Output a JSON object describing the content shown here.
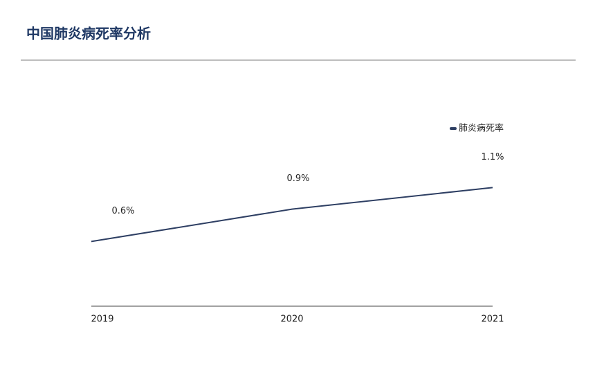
{
  "chart_data": {
    "type": "line",
    "title": "中国肺炎病死率分析",
    "categories": [
      "2019",
      "2020",
      "2021"
    ],
    "series": [
      {
        "name": "肺炎病死率",
        "color": "#2e3f63",
        "values": [
          0.6,
          0.9,
          1.1
        ],
        "value_labels": [
          "0.6%",
          "0.9%",
          "1.1%"
        ]
      }
    ],
    "ylim": [
      0,
      1.75
    ],
    "legend": "top-right"
  }
}
